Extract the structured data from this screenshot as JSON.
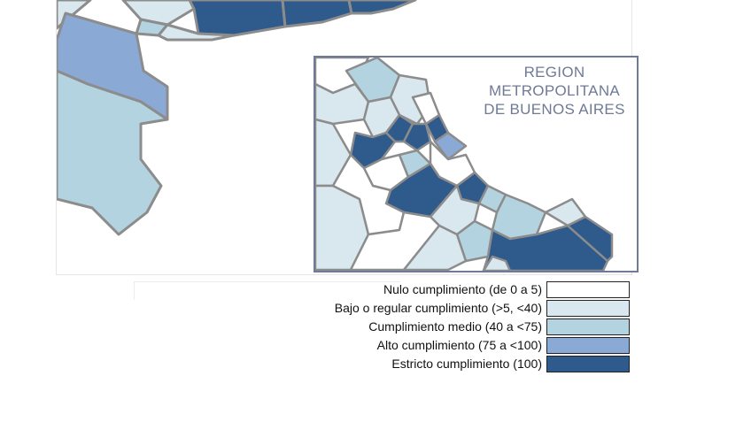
{
  "colors": {
    "nulo": "#ffffff",
    "bajo": "#d9e8ef",
    "medio": "#b2d3df",
    "alto": "#8aa9d4",
    "estricto": "#2e5a8c",
    "border": "#8c8c8c",
    "inset_border": "#6f7a97"
  },
  "inset": {
    "title_lines": [
      "REGION",
      "METROPOLITANA",
      "DE BUENOS AIRES"
    ]
  },
  "legend": {
    "items": [
      {
        "label": "Nulo cumplimiento (de 0 a 5)",
        "color_key": "nulo"
      },
      {
        "label": "Bajo o regular cumplimiento (>5, <40)",
        "color_key": "bajo"
      },
      {
        "label": "Cumplimiento medio (40 a <75)",
        "color_key": "medio"
      },
      {
        "label": "Alto cumplimiento (75 a <100)",
        "color_key": "alto"
      },
      {
        "label": "Estricto cumplimiento (100)",
        "color_key": "estricto"
      }
    ]
  }
}
